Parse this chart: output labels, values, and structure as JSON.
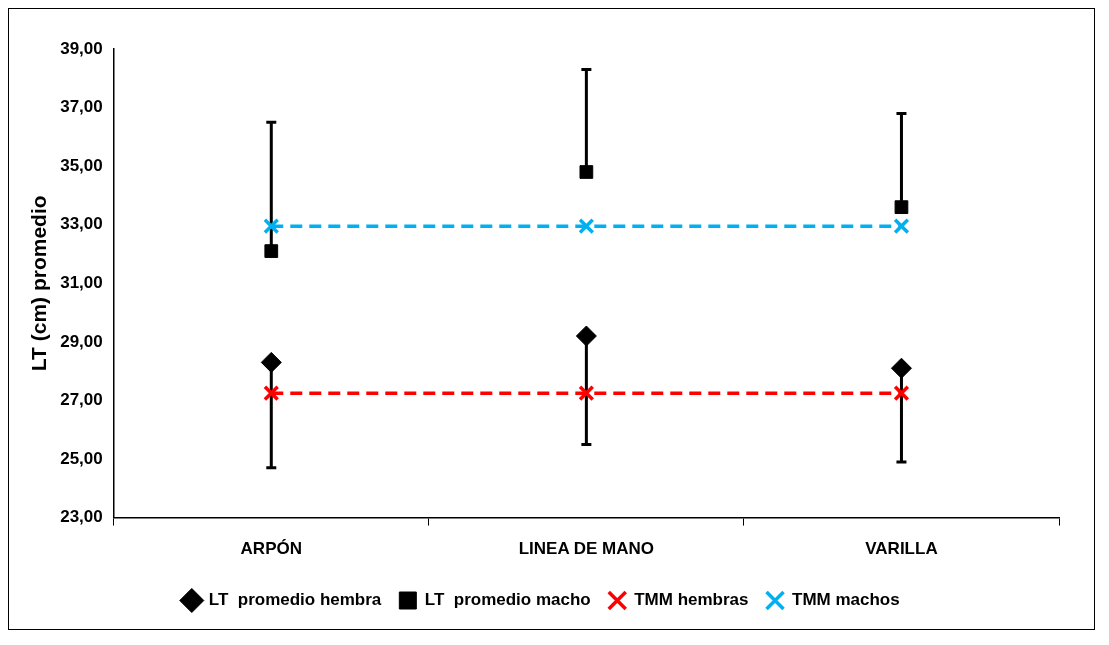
{
  "chart_data": {
    "type": "line",
    "ylabel": "LT (cm) promedio",
    "categories": [
      "ARPÓN",
      "LINEA DE MANO",
      "VARILLA"
    ],
    "ylim": [
      23,
      39
    ],
    "yticks": [
      {
        "value": 23,
        "label": "23,00"
      },
      {
        "value": 25,
        "label": "25,00"
      },
      {
        "value": 27,
        "label": "27,00"
      },
      {
        "value": 29,
        "label": "29,00"
      },
      {
        "value": 31,
        "label": "31,00"
      },
      {
        "value": 33,
        "label": "33,00"
      },
      {
        "value": 35,
        "label": "35,00"
      },
      {
        "value": 37,
        "label": "37,00"
      },
      {
        "value": 39,
        "label": "39,00"
      }
    ],
    "grid": false,
    "legend": "bottom",
    "series": [
      {
        "name": "LT  promedio hembra",
        "type": "scatter",
        "marker": "diamond",
        "color": "#000000",
        "values": [
          28.3,
          29.2,
          28.1
        ],
        "errors": [
          [
            24.7,
            28.3
          ],
          [
            25.5,
            29.2
          ],
          [
            24.9,
            28.1
          ]
        ]
      },
      {
        "name": "LT  promedio macho",
        "type": "scatter",
        "marker": "square",
        "color": "#000000",
        "values": [
          32.1,
          34.8,
          33.6
        ],
        "errors": [
          [
            32.1,
            36.5
          ],
          [
            34.8,
            38.3
          ],
          [
            33.6,
            36.8
          ]
        ]
      },
      {
        "name": "TMM hembras",
        "type": "line",
        "marker": "cross",
        "line_style": "dashed",
        "color": "#ff0000",
        "values": [
          27.25,
          27.25,
          27.25
        ]
      },
      {
        "name": "TMM machos",
        "type": "line",
        "marker": "cross",
        "line_style": "dashed",
        "color": "#00b0f0",
        "values": [
          32.95,
          32.95,
          32.95
        ]
      }
    ]
  }
}
